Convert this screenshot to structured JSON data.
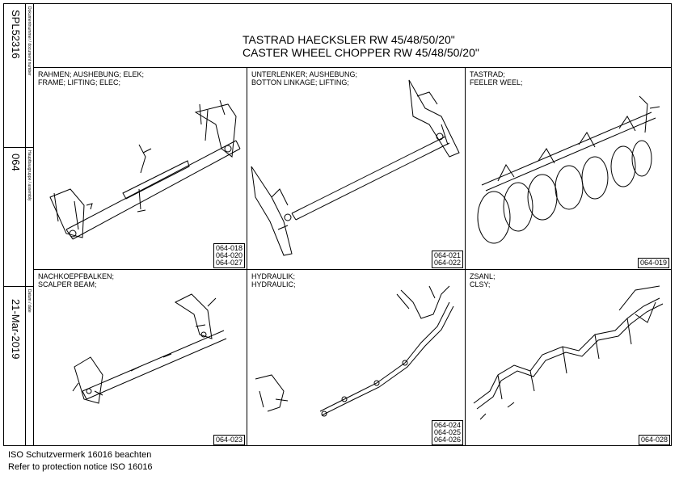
{
  "side": {
    "doc_number": "SPL52316",
    "doc_number_label": "Dokumentnummer / document number",
    "assembly": "064",
    "assembly_label": "Hauptbaugruppe / assembly",
    "date": "21-Mar-2019",
    "date_label": "Datum / date"
  },
  "title": {
    "line1": "TASTRAD HAECKSLER RW 45/48/50/20\"",
    "line2": "CASTER WHEEL CHOPPER RW 45/48/50/20\""
  },
  "panels": [
    {
      "caption1": "RAHMEN; AUSHEBUNG; ELEK;",
      "caption2": "FRAME; LIFTING; ELEC;",
      "codes": [
        "064-018",
        "064-020",
        "064-027"
      ]
    },
    {
      "caption1": "UNTERLENKER; AUSHEBUNG;",
      "caption2": "BOTTON LINKAGE; LIFTING;",
      "codes": [
        "064-021",
        "064-022"
      ]
    },
    {
      "caption1": "TASTRAD;",
      "caption2": "FEELER WEEL;",
      "codes": [
        "064-019"
      ]
    },
    {
      "caption1": "NACHKOEPFBALKEN;",
      "caption2": "SCALPER BEAM;",
      "codes": [
        "064-023"
      ]
    },
    {
      "caption1": "HYDRAULIK;",
      "caption2": "HYDRAULIC;",
      "codes": [
        "064-024",
        "064-025",
        "064-026"
      ]
    },
    {
      "caption1": "ZSANL;",
      "caption2": "CLSY;",
      "codes": [
        "064-028"
      ]
    }
  ],
  "footer": {
    "line1": "ISO Schutzvermerk 16016 beachten",
    "line2": "Refer to protection notice ISO 16016"
  }
}
